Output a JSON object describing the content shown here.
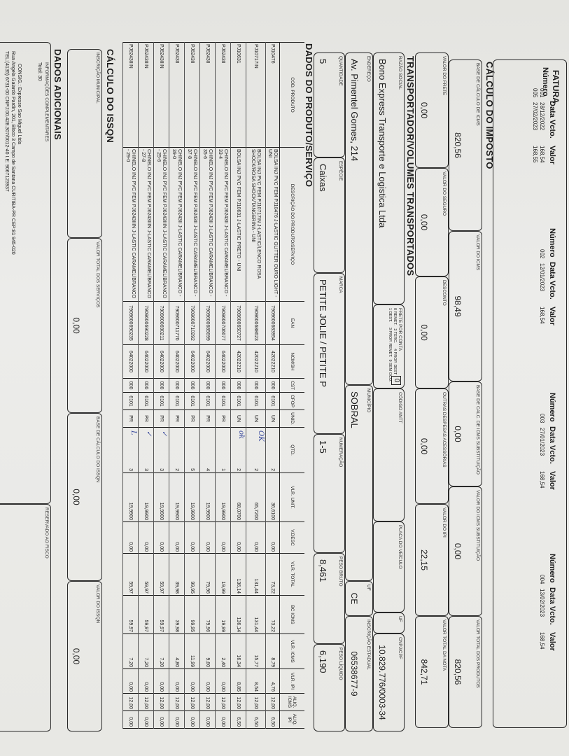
{
  "fatura": {
    "title": "FATURA",
    "col_numero": "Número",
    "col_data": "Data Vcto.",
    "col_valor": "Valor",
    "groups": [
      {
        "items": [
          {
            "numero": "001",
            "data": "28/12/2022",
            "valor": "168,54"
          },
          {
            "numero": "005",
            "data": "27/02/2023",
            "valor": "168,55"
          }
        ]
      },
      {
        "items": [
          {
            "numero": "002",
            "data": "12/01/2023",
            "valor": "168,54"
          }
        ]
      },
      {
        "items": [
          {
            "numero": "003",
            "data": "27/01/2023",
            "valor": "168,54"
          }
        ]
      },
      {
        "items": [
          {
            "numero": "004",
            "data": "13/02/2023",
            "valor": "168,54"
          }
        ]
      }
    ]
  },
  "imposto": {
    "title": "CÁLCULO DO IMPOSTO",
    "base_icms": {
      "label": "BASE DE CÁLCULO DE ICMS",
      "value": "820,56"
    },
    "valor_icms": {
      "label": "VALOR DO ICMS",
      "value": "98,49"
    },
    "base_icms_st": {
      "label": "BASE DE CALC. DE ICMS SUBSTITUIÇÃO",
      "value": "0,00"
    },
    "valor_icms_st": {
      "label": "VALOR DO ICMS SUBSTITUIÇÃO",
      "value": "0,00"
    },
    "total_produtos": {
      "label": "VALOR TOTAL DOS PRODUTOS",
      "value": "820,56"
    },
    "frete": {
      "label": "VALOR DO FRETE",
      "value": "0,00"
    },
    "seguro": {
      "label": "VALOR DO SEGURO",
      "value": "0,00"
    },
    "desconto": {
      "label": "DESCONTO",
      "value": "0,00"
    },
    "outras": {
      "label": "OUTRAS DESPESAS ACESSÓRIAS",
      "value": "0,00"
    },
    "ipi": {
      "label": "VALOR DO IPI",
      "value": "22,15"
    },
    "total_nota": {
      "label": "VALOR TOTAL DA NOTA",
      "value": "842,71"
    }
  },
  "transportador": {
    "title": "TRANSPORTADOR/VOLUMES TRANSPORTADOS",
    "razao_social": {
      "label": "RAZÃO SOCIAL",
      "value": "Bono Express Transporte e Logistica Ltda"
    },
    "frete_conta": {
      "label": "FRETE POR CONTA",
      "options": "0 REMET.   2 TERC.     4 PROP. DEST\n1 DEST.     3 PROP. REMET.  9 SEM OCO.",
      "value": "0"
    },
    "antt": {
      "label": "CÓDIGO ANTT",
      "value": ""
    },
    "placa": {
      "label": "PLACA DO VEÍCULO",
      "value": ""
    },
    "uf_veiculo": {
      "label": "UF",
      "value": ""
    },
    "cnpj": {
      "label": "CNPJ/CPF",
      "value": "10.829.776/0003-34"
    },
    "endereco": {
      "label": "ENDEREÇO",
      "value": "Av. Pimentel Gomes, 214"
    },
    "municipio": {
      "label": "MUNICÍPIO",
      "value": "SOBRAL"
    },
    "uf": {
      "label": "UF",
      "value": "CE"
    },
    "ie": {
      "label": "INSCRIÇÃO ESTADUAL",
      "value": "06538677-9"
    },
    "quantidade": {
      "label": "QUANTIDADE",
      "value": "5"
    },
    "especie": {
      "label": "ESPÉCIE",
      "value": "Caixas"
    },
    "marca": {
      "label": "MARCA",
      "value": "PETITE JOLIE / PETITE P"
    },
    "numeracao": {
      "label": "NUMERAÇÃO",
      "value": "1-5"
    },
    "peso_bruto": {
      "label": "PESO BRUTO",
      "value": "8,461"
    },
    "peso_liquido": {
      "label": "PESO LÍQUIDO",
      "value": "6,190"
    }
  },
  "produtos": {
    "title": "DADOS DO PRODUTO/SERVIÇO",
    "columns": [
      "COD. PRODUTO",
      "DESCRIÇÃO DO PRODUTO/SERVIÇO",
      "EAN",
      "NCM/SH",
      "CST",
      "CFOP",
      "UNID.",
      "QTD.",
      "VLR. UNIT.",
      "V.DESC",
      "VLR. TOTAL",
      "BC ICMS",
      "VLR. ICMS",
      "VLR. IPI",
      "ALIQ. ICMS",
      "ALIQ. IPI"
    ],
    "rows": [
      {
        "cells": [
          "PJ10476",
          "BOLSA INJ PVC FEM PJ10476 J-LASTIC GLITTER OURO LIGHT - UNI",
          "7909600683954",
          "42022210",
          "000",
          "6101",
          "UN",
          "2",
          "36,6100",
          "0,00",
          "73,22",
          "73,22",
          "8,79",
          "4,76",
          "12,00",
          "6,50"
        ],
        "mark": ""
      },
      {
        "cells": [
          "PJ10717IN",
          "BOLSA INJ PVC FEM PJ10717IN J-LASTIC/LENCO ROSA SHOCK/ROSA SHOCK/TANGERINA - UNI",
          "7909600688623",
          "42022210",
          "000",
          "6101",
          "UN",
          "2",
          "65,7200",
          "0,00",
          "131,44",
          "131,44",
          "15,77",
          "8,54",
          "12,00",
          "6,50"
        ],
        "mark": "OK"
      },
      {
        "cells": [
          "PJ10631",
          "BOLSA INJ PVC FEM PJ10631 J-LASTIC PRETO - UNI",
          "7909600650727",
          "42022210",
          "000",
          "6101",
          "UN",
          "2",
          "68,0700",
          "0,00",
          "136,14",
          "136,14",
          "16,34",
          "8,85",
          "12,00",
          "6,50"
        ],
        "mark": "ok"
      },
      {
        "cells": [
          "PJ6243II",
          "CHINELO INJ PVC FEM PJ6243II J-LASTIC CARAMEL/BRANCO - 33-4",
          "7909600706677",
          "64022000",
          "000",
          "6101",
          "PR",
          "1",
          "19,9900",
          "0,00",
          "19,99",
          "19,99",
          "2,40",
          "0,00",
          "12,00",
          "0,00"
        ],
        "mark": ""
      },
      {
        "cells": [
          "PJ6243II",
          "CHINELO INJ PVC FEM PJ6243II J-LASTIC CARAMEL/BRANCO - 35-6",
          "7909600685699",
          "64022000",
          "000",
          "6101",
          "PR",
          "4",
          "19,9900",
          "0,00",
          "79,96",
          "79,96",
          "9,60",
          "0,00",
          "12,00",
          "0,00"
        ],
        "mark": ""
      },
      {
        "cells": [
          "PJ6243II",
          "CHINELO INJ PVC FEM PJ6243II J-LASTIC CARAMEL/BRANCO - 37-8",
          "7909600710292",
          "64022000",
          "000",
          "6101",
          "PR",
          "5",
          "19,9900",
          "0,00",
          "99,95",
          "99,95",
          "11,99",
          "0,00",
          "12,00",
          "0,00"
        ],
        "mark": ""
      },
      {
        "cells": [
          "PJ6243II",
          "CHINELO INJ PVC FEM PJ6243II J-LASTIC CARAMEL/BRANCO - 39-0",
          "7909600711770",
          "64022000",
          "000",
          "6101",
          "PR",
          "2",
          "19,9900",
          "0,00",
          "39,98",
          "39,98",
          "4,80",
          "0,00",
          "12,00",
          "0,00"
        ],
        "mark": ""
      },
      {
        "cells": [
          "PJ6243IIIN",
          "CHINELO INJ PVC FEM PJ6243IIIN J-LASTIC CARAMEL/BRANCO - 25-6",
          "7909600690211",
          "64022000",
          "000",
          "6101",
          "PR",
          "3",
          "19,9900",
          "0,00",
          "59,97",
          "59,97",
          "7,20",
          "0,00",
          "12,00",
          "0,00"
        ],
        "mark": "✓"
      },
      {
        "cells": [
          "PJ6243IIIN",
          "CHINELO INJ PVC FEM PJ6243IIIN J-LASTIC CARAMEL/BRANCO - 27-8",
          "7909600690228",
          "64022000",
          "000",
          "6101",
          "PR",
          "3",
          "19,9900",
          "0,00",
          "59,97",
          "59,97",
          "7,20",
          "0,00",
          "12,00",
          "0,00"
        ],
        "mark": "✓"
      },
      {
        "cells": [
          "PJ6243IIIN",
          "CHINELO INJ PVC FEM PJ6243IIIN J-LASTIC CARAMEL/BRANCO - 29-0",
          "7909600690235",
          "64022000",
          "000",
          "6101",
          "PR",
          "3",
          "19,9900",
          "0,00",
          "59,97",
          "59,97",
          "7,20",
          "0,00",
          "12,00",
          "0,00"
        ],
        "mark": "L"
      }
    ]
  },
  "issqn": {
    "title": "CÁLCULO DO ISSQN",
    "inscricao": {
      "label": "INSCRIÇÃO MUNICIPAL",
      "value": ""
    },
    "total_servicos": {
      "label": "VALOR TOTAL DOS SERVIÇOS",
      "value": "0,00"
    },
    "base": {
      "label": "BASE DE CÁLCULO DO ISSQN",
      "value": "0,00"
    },
    "valor": {
      "label": "VALOR DO ISSQN",
      "value": "0,00"
    }
  },
  "adicionais": {
    "title": "DADOS ADICIONAIS",
    "info_label": "INFORMAÇÕES COMPLEMENTARES",
    "total_line": "Total:   30",
    "consig_1": "CONSIG.: Expresso Sao Miguel Ltda",
    "consig_2": "Rua Angela Gaiardo Pardin, 201, Bloco 3 Campo de Santana CURITIBA-PR CEP:81 945-020",
    "consig_3": "TEL:(4135) 6731-00   CNPJ:00.428.307/0012-40 I.E: 9067123937",
    "fisco_label": "RESERVADO AO FISCO"
  },
  "colors": {
    "ink": "#1c1c1c",
    "paper": "#ececea",
    "handwriting": "#34459a"
  }
}
